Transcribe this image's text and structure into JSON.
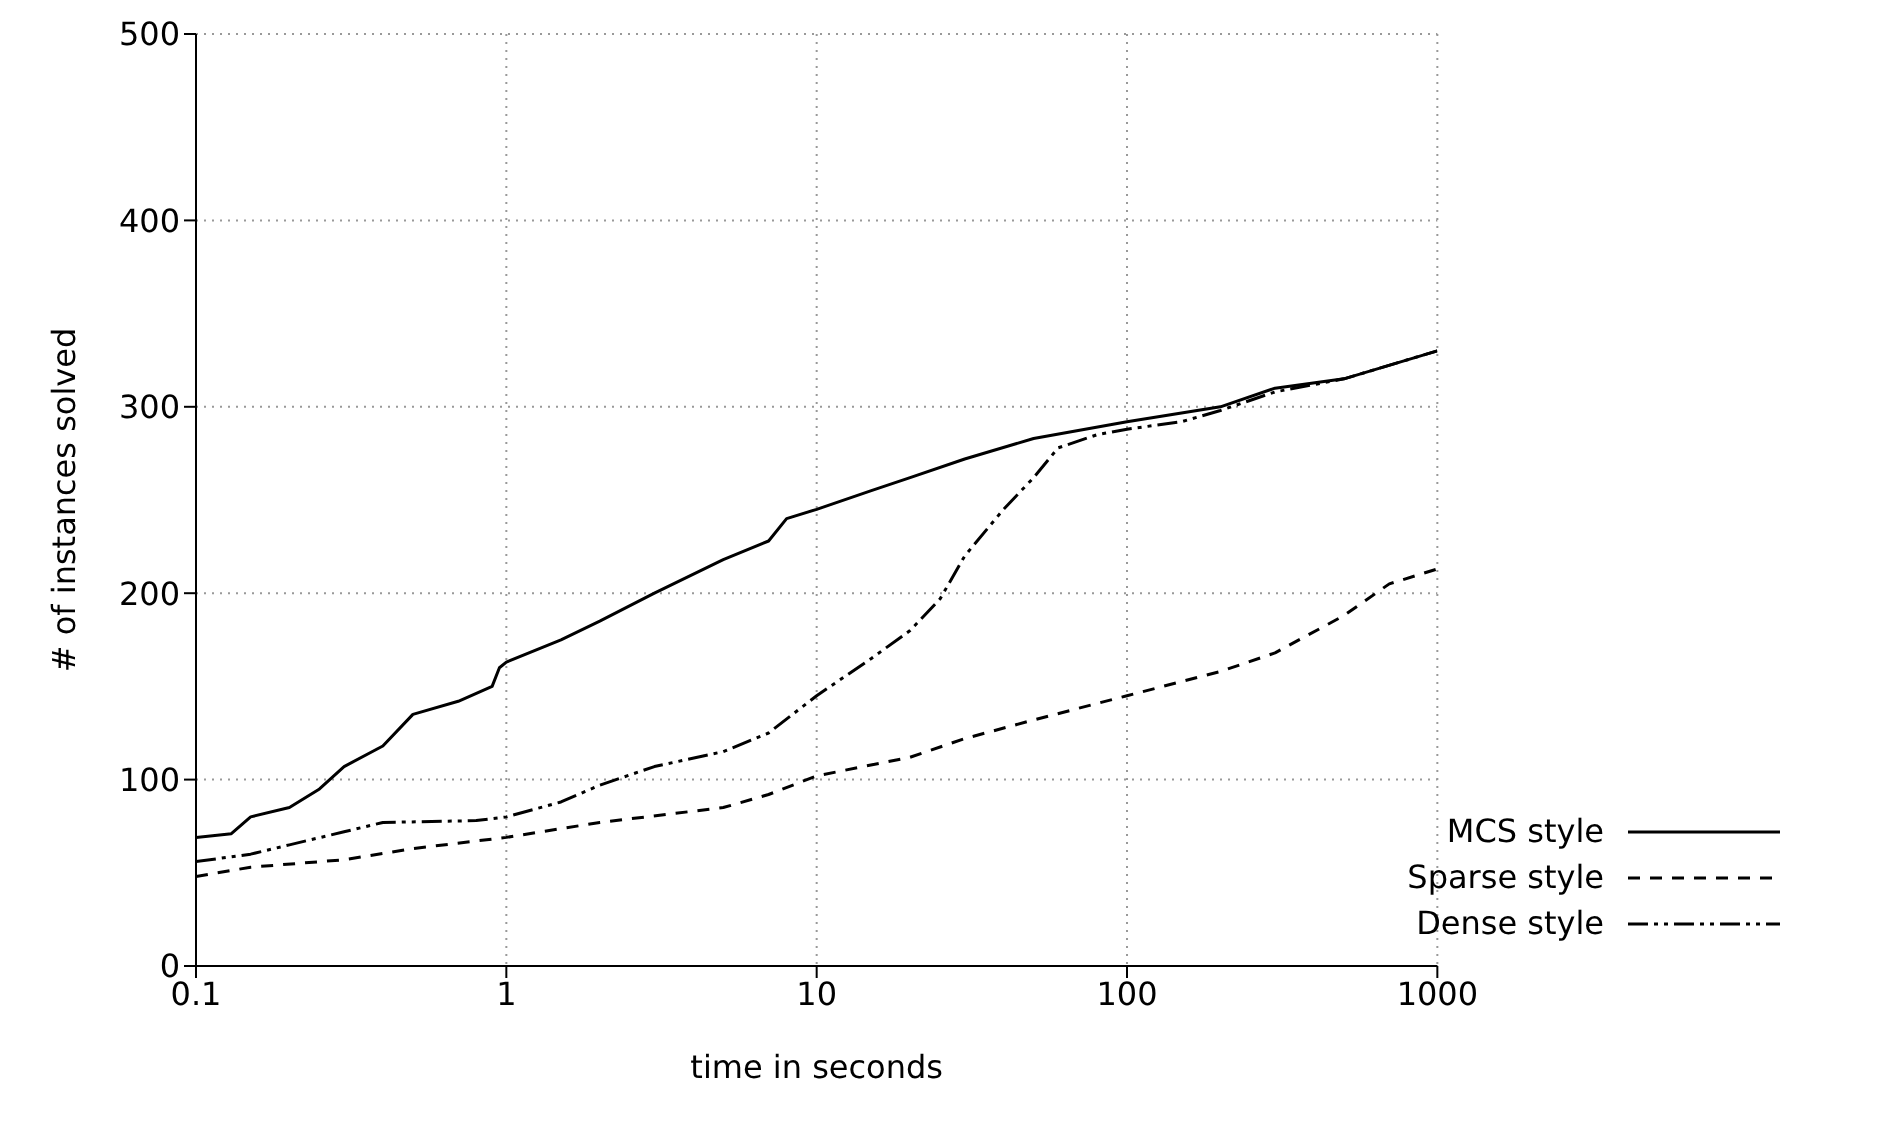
{
  "chart_data": {
    "type": "line",
    "xlabel": "time in seconds",
    "ylabel": "# of instances solved",
    "log": "x",
    "xlim": [
      0.1,
      1000
    ],
    "xticks": [
      0.1,
      1,
      10,
      100,
      1000
    ],
    "ylim": [
      0,
      500
    ],
    "yticks": [
      0,
      100,
      200,
      300,
      400,
      500
    ],
    "grid": true,
    "legend": "bottom right",
    "marker": "none",
    "series": [
      {
        "name": "MCS style",
        "color": "#000000",
        "line_style": "solid",
        "x": [
          0.1,
          0.13,
          0.15,
          0.2,
          0.25,
          0.3,
          0.4,
          0.5,
          0.7,
          0.9,
          0.95,
          1,
          1.5,
          2,
          3,
          5,
          7,
          8,
          10,
          15,
          20,
          30,
          50,
          100,
          200,
          300,
          500,
          1000
        ],
        "values": [
          69,
          71,
          80,
          85,
          95,
          107,
          118,
          135,
          142,
          150,
          160,
          163,
          175,
          185,
          200,
          218,
          228,
          240,
          245,
          255,
          262,
          272,
          283,
          292,
          300,
          310,
          315,
          330
        ]
      },
      {
        "name": "Sparse style",
        "color": "#000000",
        "line_style": "dashed",
        "x": [
          0.1,
          0.15,
          0.3,
          0.5,
          1,
          2,
          5,
          7,
          10,
          20,
          30,
          50,
          100,
          200,
          300,
          500,
          700,
          1000
        ],
        "values": [
          48,
          53,
          57,
          63,
          69,
          77,
          85,
          92,
          102,
          112,
          122,
          132,
          145,
          158,
          168,
          188,
          205,
          213
        ]
      },
      {
        "name": "Dense style",
        "color": "#000000",
        "line_style": "dashdotdot",
        "x": [
          0.1,
          0.15,
          0.2,
          0.3,
          0.4,
          0.8,
          1,
          1.5,
          2,
          3,
          5,
          7,
          10,
          15,
          20,
          25,
          30,
          40,
          50,
          60,
          80,
          100,
          150,
          200,
          300,
          500,
          1000
        ],
        "values": [
          56,
          60,
          65,
          72,
          77,
          78,
          80,
          88,
          97,
          107,
          115,
          125,
          145,
          165,
          180,
          197,
          220,
          245,
          262,
          278,
          285,
          288,
          292,
          298,
          308,
          315,
          330
        ]
      }
    ]
  }
}
